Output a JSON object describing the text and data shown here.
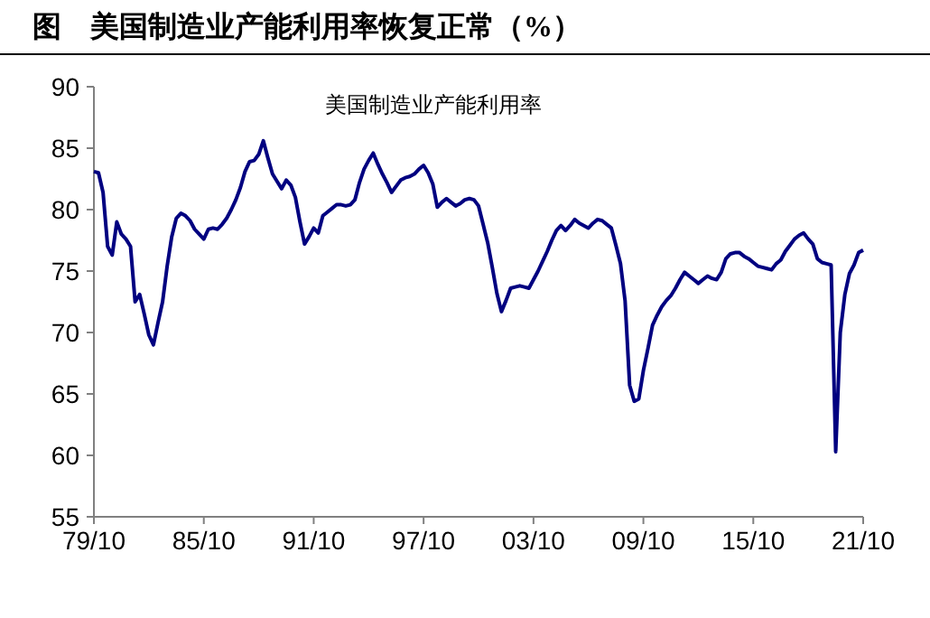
{
  "chart_data": {
    "type": "line",
    "title": "图    美国制造业产能利用率恢复正常（%）",
    "categories": [
      "79/10",
      null,
      null,
      null,
      null,
      null,
      null,
      null,
      null,
      null,
      null,
      null,
      null,
      null,
      null,
      null,
      null,
      null,
      null,
      null,
      null,
      null,
      null,
      null,
      "85/10",
      null,
      null,
      null,
      null,
      null,
      null,
      null,
      null,
      null,
      null,
      null,
      null,
      null,
      null,
      null,
      null,
      null,
      null,
      null,
      null,
      null,
      null,
      null,
      "91/10",
      null,
      null,
      null,
      null,
      null,
      null,
      null,
      null,
      null,
      null,
      null,
      null,
      null,
      null,
      null,
      null,
      null,
      null,
      null,
      null,
      null,
      null,
      null,
      "97/10",
      null,
      null,
      null,
      null,
      null,
      null,
      null,
      null,
      null,
      null,
      null,
      null,
      null,
      null,
      null,
      null,
      null,
      null,
      null,
      null,
      null,
      null,
      null,
      "03/10",
      null,
      null,
      null,
      null,
      null,
      null,
      null,
      null,
      null,
      null,
      null,
      null,
      null,
      null,
      null,
      null,
      null,
      null,
      null,
      null,
      null,
      null,
      null,
      "09/10",
      null,
      null,
      null,
      null,
      null,
      null,
      null,
      null,
      null,
      null,
      null,
      null,
      null,
      null,
      null,
      null,
      null,
      null,
      null,
      null,
      null,
      null,
      null,
      "15/10",
      null,
      null,
      null,
      null,
      null,
      null,
      null,
      null,
      null,
      null,
      null,
      null,
      null,
      null,
      null,
      null,
      null,
      null,
      null,
      null,
      null,
      null,
      null,
      "21/10"
    ],
    "series": [
      {
        "name": "美国制造业产能利用率",
        "color": "#000080",
        "values": [
          83.1,
          83.0,
          81.4,
          77.0,
          76.3,
          79.0,
          78.0,
          77.6,
          77.0,
          72.5,
          73.1,
          71.5,
          69.8,
          69.0,
          70.8,
          72.5,
          75.4,
          77.8,
          79.3,
          79.7,
          79.5,
          79.1,
          78.4,
          78.0,
          77.6,
          78.4,
          78.5,
          78.4,
          78.8,
          79.3,
          80.0,
          80.8,
          81.8,
          83.1,
          83.9,
          84.0,
          84.5,
          85.6,
          84.2,
          82.9,
          82.3,
          81.7,
          82.4,
          82.0,
          81.0,
          79.0,
          77.2,
          77.8,
          78.5,
          78.1,
          79.5,
          79.8,
          80.1,
          80.4,
          80.4,
          80.3,
          80.4,
          80.8,
          82.2,
          83.3,
          84.0,
          84.6,
          83.7,
          82.9,
          82.2,
          81.4,
          81.9,
          82.4,
          82.6,
          82.7,
          82.9,
          83.3,
          83.6,
          83.0,
          82.1,
          80.2,
          80.6,
          80.9,
          80.6,
          80.3,
          80.5,
          80.8,
          80.9,
          80.8,
          80.3,
          78.8,
          77.3,
          75.3,
          73.2,
          71.7,
          72.6,
          73.6,
          73.7,
          73.8,
          73.7,
          73.6,
          74.3,
          75.0,
          75.8,
          76.6,
          77.5,
          78.3,
          78.7,
          78.3,
          78.7,
          79.2,
          78.9,
          78.7,
          78.5,
          78.9,
          79.2,
          79.1,
          78.8,
          78.5,
          77.1,
          75.6,
          72.6,
          65.7,
          64.4,
          64.6,
          66.9,
          68.7,
          70.6,
          71.4,
          72.1,
          72.6,
          73.0,
          73.6,
          74.3,
          74.9,
          74.6,
          74.3,
          74.0,
          74.3,
          74.6,
          74.4,
          74.3,
          74.9,
          76.0,
          76.4,
          76.5,
          76.5,
          76.2,
          76.0,
          75.7,
          75.4,
          75.3,
          75.2,
          75.1,
          75.6,
          75.9,
          76.6,
          77.1,
          77.6,
          77.9,
          78.1,
          77.6,
          77.2,
          76.0,
          75.7,
          75.6,
          75.5,
          60.3,
          70.0,
          73.1,
          74.8,
          75.5,
          76.5,
          76.7
        ]
      }
    ],
    "ylim": [
      55,
      90
    ],
    "yticks": [
      55,
      60,
      65,
      70,
      75,
      80,
      85,
      90
    ],
    "legend": "top",
    "grid": false,
    "marker": "none",
    "line_style": "solid"
  }
}
